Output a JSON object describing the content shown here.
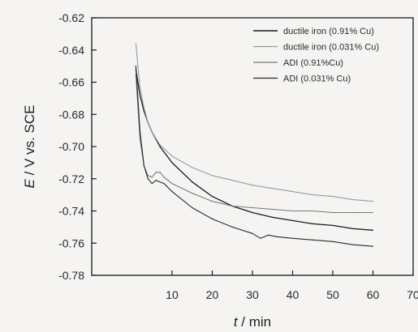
{
  "chart_data": {
    "type": "line",
    "ylabel_italic": "E",
    "ylabel_rest": " / V vs. SCE",
    "xlabel_italic": "t",
    "xlabel_rest": " / min",
    "xlim": [
      -10,
      70
    ],
    "ylim": [
      -0.78,
      -0.62
    ],
    "xticks": [
      10,
      20,
      30,
      40,
      50,
      60,
      70
    ],
    "yticks": [
      -0.62,
      -0.64,
      -0.66,
      -0.68,
      -0.7,
      -0.72,
      -0.74,
      -0.76,
      -0.78
    ],
    "ytick_labels": [
      "-0.62",
      "-0.64",
      "-0.66",
      "-0.68",
      "-0.70",
      "-0.72",
      "-0.74",
      "-0.76",
      "-0.78"
    ],
    "grid": false,
    "legend_position": "top-right",
    "series": [
      {
        "name": "ductile iron (0.91% Cu)",
        "color": "#1a1a1a",
        "width": 1.3,
        "x": [
          1,
          2,
          3,
          4,
          5,
          7,
          10,
          15,
          20,
          25,
          30,
          35,
          40,
          45,
          50,
          55,
          60
        ],
        "y": [
          -0.652,
          -0.668,
          -0.678,
          -0.685,
          -0.691,
          -0.7,
          -0.71,
          -0.722,
          -0.731,
          -0.737,
          -0.741,
          -0.744,
          -0.746,
          -0.748,
          -0.749,
          -0.751,
          -0.752
        ]
      },
      {
        "name": "ductile iron (0.031% Cu)",
        "color": "#9a9a9a",
        "width": 1.1,
        "x": [
          1,
          1.5,
          2,
          3,
          4,
          5,
          7,
          10,
          15,
          20,
          25,
          30,
          35,
          40,
          45,
          50,
          55,
          60
        ],
        "y": [
          -0.636,
          -0.65,
          -0.663,
          -0.676,
          -0.685,
          -0.691,
          -0.699,
          -0.706,
          -0.713,
          -0.718,
          -0.721,
          -0.724,
          -0.726,
          -0.728,
          -0.73,
          -0.731,
          -0.733,
          -0.734
        ]
      },
      {
        "name": "ADI (0.91%Cu)",
        "color": "#777777",
        "width": 1.1,
        "x": [
          1,
          2,
          3,
          4,
          5,
          6,
          7,
          8,
          10,
          15,
          20,
          25,
          30,
          35,
          40,
          45,
          50,
          55,
          60
        ],
        "y": [
          -0.655,
          -0.695,
          -0.712,
          -0.718,
          -0.719,
          -0.716,
          -0.716,
          -0.719,
          -0.723,
          -0.729,
          -0.734,
          -0.737,
          -0.738,
          -0.739,
          -0.74,
          -0.74,
          -0.741,
          -0.741,
          -0.741
        ]
      },
      {
        "name": "ADI (0.031% Cu)",
        "color": "#2a2a2a",
        "width": 1.1,
        "x": [
          1,
          2,
          3,
          4,
          5,
          6,
          8,
          10,
          15,
          20,
          25,
          30,
          32,
          34,
          36,
          40,
          45,
          50,
          55,
          60
        ],
        "y": [
          -0.65,
          -0.69,
          -0.712,
          -0.72,
          -0.723,
          -0.721,
          -0.723,
          -0.728,
          -0.738,
          -0.745,
          -0.75,
          -0.754,
          -0.757,
          -0.755,
          -0.756,
          -0.757,
          -0.758,
          -0.759,
          -0.761,
          -0.762
        ]
      }
    ]
  }
}
